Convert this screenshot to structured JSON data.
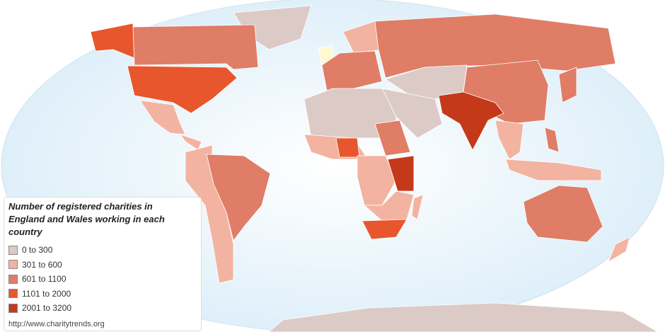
{
  "legend": {
    "title": "Number of registered charities in England and Wales working in each country",
    "items": [
      {
        "label": "0 to 300",
        "color": "#dccac7"
      },
      {
        "label": "301 to 600",
        "color": "#f3b3a1"
      },
      {
        "label": "601 to 1100",
        "color": "#df7d66"
      },
      {
        "label": "1101 to 2000",
        "color": "#e8562d"
      },
      {
        "label": "2001 to 3200",
        "color": "#c4391a"
      }
    ]
  },
  "source": "http://www.charitytrends.org"
}
